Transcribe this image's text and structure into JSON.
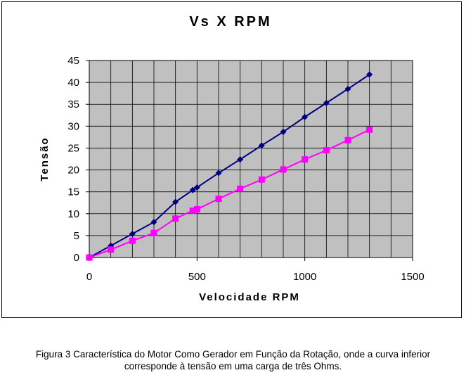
{
  "chart_data": {
    "type": "line",
    "title": "Vs X RPM",
    "xlabel": "Velocidade RPM",
    "ylabel": "Tensão",
    "xlim": [
      0,
      1500
    ],
    "ylim": [
      0,
      45
    ],
    "xticks": [
      0,
      500,
      1000,
      1500
    ],
    "yticks": [
      0,
      5,
      10,
      15,
      20,
      25,
      30,
      35,
      40,
      45
    ],
    "grid": true,
    "legend": "none",
    "series": [
      {
        "color": "#000080",
        "marker": "diamond",
        "x": [
          0,
          100,
          200,
          300,
          400,
          480,
          500,
          600,
          700,
          800,
          900,
          1000,
          1100,
          1200,
          1300
        ],
        "y": [
          0,
          2.7,
          5.4,
          8.1,
          12.7,
          15.4,
          16.0,
          19.3,
          22.4,
          25.6,
          28.7,
          32.1,
          35.3,
          38.5,
          41.8
        ]
      },
      {
        "color": "#ff00ff",
        "marker": "square",
        "x": [
          0,
          100,
          200,
          300,
          400,
          480,
          500,
          600,
          700,
          800,
          900,
          1000,
          1100,
          1200,
          1300
        ],
        "y": [
          0,
          1.8,
          3.8,
          5.6,
          8.9,
          10.7,
          11.0,
          13.4,
          15.7,
          17.8,
          20.1,
          22.4,
          24.5,
          26.8,
          29.2
        ]
      }
    ]
  },
  "caption": {
    "line1": "Figura 3 Característica do Motor Como Gerador em Função da Rotação, onde a curva inferior",
    "line2": "corresponde à tensão em uma carga de três Ohms."
  },
  "colors": {
    "plot_bg": "#c0c0c0",
    "grid": "#000000"
  }
}
